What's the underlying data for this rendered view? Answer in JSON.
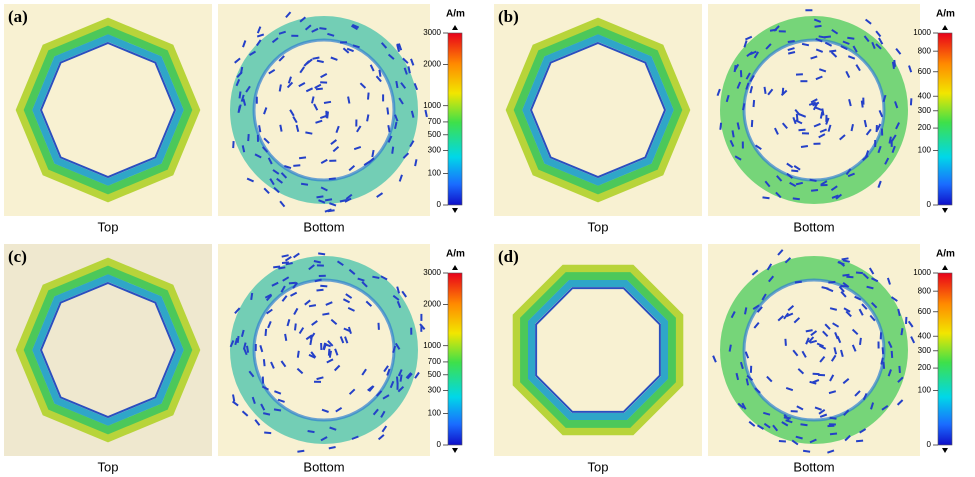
{
  "panels": [
    {
      "label": "(a)",
      "views": [
        "Top",
        "Bottom"
      ],
      "colorbar": {
        "unit": "A/m",
        "ticks": [
          0,
          100,
          300,
          500,
          700,
          1000,
          2000,
          3000
        ]
      }
    },
    {
      "label": "(b)",
      "views": [
        "Top",
        "Bottom"
      ],
      "colorbar": {
        "unit": "A/m",
        "ticks": [
          0,
          100,
          200,
          300,
          400,
          600,
          800,
          1000
        ]
      }
    },
    {
      "label": "(c)",
      "views": [
        "Top",
        "Bottom"
      ],
      "colorbar": {
        "unit": "A/m",
        "ticks": [
          0,
          100,
          300,
          500,
          700,
          1000,
          2000,
          3000
        ]
      }
    },
    {
      "label": "(d)",
      "views": [
        "Top",
        "Bottom"
      ],
      "colorbar": {
        "unit": "A/m",
        "ticks": [
          0,
          100,
          200,
          300,
          400,
          600,
          800,
          1000
        ]
      }
    }
  ]
}
